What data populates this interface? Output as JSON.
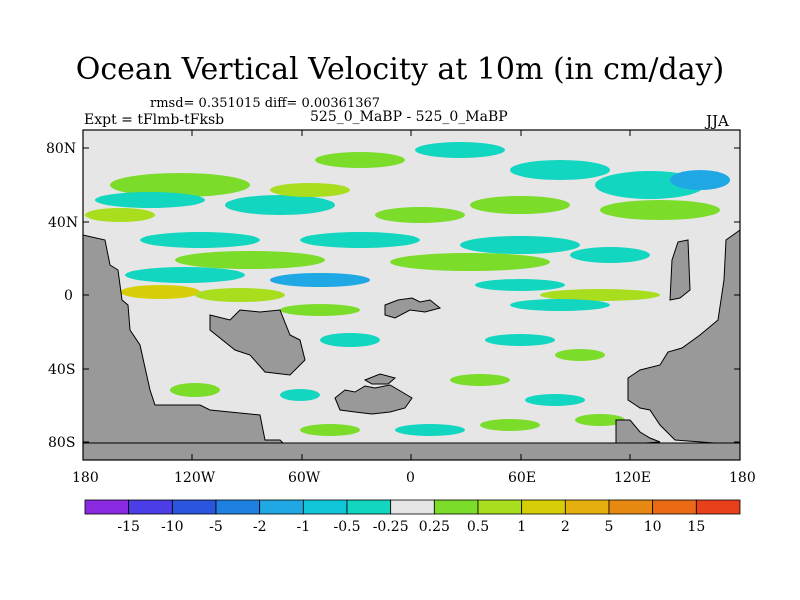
{
  "title": "Ocean Vertical Velocity at 10m (in cm/day)",
  "stats": "rmsd= 0.351015 diff= 0.00361367",
  "experiment": "Expt = tFlmb-tFksb",
  "cases": "525_0_MaBP - 525_0_MaBP",
  "season": "JJA",
  "lat_labels": [
    "80N",
    "40N",
    "0",
    "40S",
    "80S"
  ],
  "lon_labels": [
    "180",
    "120W",
    "60W",
    "0",
    "60E",
    "120E",
    "180"
  ],
  "colorbar": {
    "labels": [
      "-15",
      "-10",
      "-5",
      "-2",
      "-1",
      "-0.5",
      "-0.25",
      "0.25",
      "0.5",
      "1",
      "2",
      "5",
      "10",
      "15"
    ],
    "colors": [
      "#8a2be2",
      "#4b3ee6",
      "#2a55dc",
      "#1e80e0",
      "#1fa8e3",
      "#10c6d8",
      "#13d6c0",
      "#e6e6e6",
      "#7bdc2a",
      "#a8de1e",
      "#d6cf08",
      "#e6b00f",
      "#e88a12",
      "#ea6a16",
      "#e8401a"
    ]
  },
  "colors": {
    "land": "#999999",
    "ocean_background": "#e6e6e6",
    "green": "#7bdc2a",
    "cyan": "#13d6c0",
    "blue": "#1fa8e3",
    "yellow_green": "#a8de1e",
    "yellow": "#d6cf08"
  }
}
